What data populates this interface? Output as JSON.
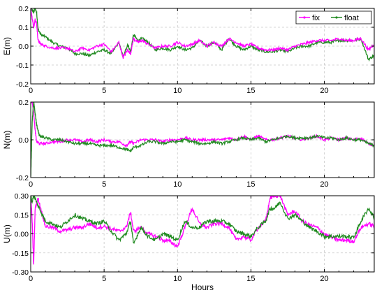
{
  "chart_data": [
    {
      "type": "line",
      "ylabel": "E(m)",
      "xlabel": "",
      "xlim": [
        0,
        23.4
      ],
      "ylim": [
        -0.2,
        0.2
      ],
      "xticks": [
        "0",
        "5",
        "10",
        "15",
        "20"
      ],
      "yticks": [
        "0.2",
        "0.1",
        "0.0",
        "-0.1",
        "-0.2"
      ],
      "grid": true,
      "legend": "top-right",
      "series": [
        {
          "name": "fix",
          "color": "#ff00ff",
          "x": [
            0,
            0.1,
            0.2,
            0.3,
            0.4,
            0.5,
            0.7,
            1,
            1.5,
            2,
            2.5,
            3,
            3.5,
            4,
            4.5,
            5,
            5.5,
            6,
            6.3,
            6.6,
            6.8,
            7,
            7.3,
            7.6,
            8,
            8.5,
            9,
            9.5,
            10,
            10.5,
            11,
            11.5,
            12,
            12.5,
            13,
            13.5,
            14,
            14.5,
            15,
            15.5,
            16,
            16.5,
            17,
            17.5,
            18,
            18.5,
            19,
            19.5,
            20,
            20.5,
            21,
            21.5,
            22,
            22.5,
            23,
            23.4
          ],
          "y": [
            0.2,
            0.15,
            0.1,
            0.14,
            0.12,
            0.03,
            0.01,
            0.0,
            -0.01,
            -0.01,
            -0.01,
            -0.03,
            -0.01,
            -0.02,
            0.0,
            0.01,
            -0.03,
            0.02,
            -0.06,
            -0.02,
            -0.04,
            0.04,
            0.02,
            0.03,
            0.01,
            -0.01,
            0.0,
            0.0,
            0.02,
            0.0,
            0.01,
            0.03,
            0.0,
            0.02,
            0.0,
            0.04,
            0.02,
            0.0,
            0.01,
            -0.01,
            -0.02,
            -0.02,
            -0.01,
            -0.02,
            0.0,
            0.01,
            0.02,
            0.03,
            0.03,
            0.03,
            0.04,
            0.03,
            0.03,
            0.04,
            -0.02,
            0.01
          ]
        },
        {
          "name": "float",
          "color": "#228b22",
          "x": [
            0,
            0.1,
            0.2,
            0.3,
            0.4,
            0.5,
            0.7,
            1,
            1.5,
            2,
            2.5,
            3,
            3.5,
            4,
            4.5,
            5,
            5.5,
            6,
            6.3,
            6.6,
            6.8,
            7,
            7.3,
            7.6,
            8,
            8.5,
            9,
            9.5,
            10,
            10.5,
            11,
            11.5,
            12,
            12.5,
            13,
            13.5,
            14,
            14.5,
            15,
            15.5,
            16,
            16.5,
            17,
            17.5,
            18,
            18.5,
            19,
            19.5,
            20,
            20.5,
            21,
            21.5,
            22,
            22.5,
            23,
            23.4
          ],
          "y": [
            0.2,
            0.19,
            0.18,
            0.2,
            0.18,
            0.09,
            0.06,
            0.05,
            0.02,
            0.0,
            -0.01,
            -0.04,
            -0.04,
            -0.05,
            -0.03,
            -0.02,
            -0.04,
            0.02,
            -0.06,
            0.01,
            -0.03,
            0.06,
            0.03,
            0.04,
            0.02,
            -0.02,
            -0.01,
            -0.02,
            0.0,
            -0.02,
            -0.01,
            0.03,
            0.0,
            0.02,
            -0.02,
            0.04,
            0.0,
            -0.02,
            0.0,
            -0.02,
            -0.03,
            -0.03,
            -0.02,
            -0.03,
            -0.01,
            0.0,
            0.0,
            0.02,
            0.02,
            0.02,
            0.03,
            0.03,
            0.03,
            0.04,
            -0.07,
            -0.05
          ]
        }
      ]
    },
    {
      "type": "line",
      "ylabel": "N(m)",
      "xlabel": "",
      "xlim": [
        0,
        23.4
      ],
      "ylim": [
        -0.2,
        0.2
      ],
      "xticks": [
        "0",
        "5",
        "10",
        "15",
        "20"
      ],
      "yticks": [
        "0.2",
        "0.0",
        "-0.2"
      ],
      "grid": true,
      "series": [
        {
          "name": "fix",
          "color": "#ff00ff",
          "x": [
            0,
            0.1,
            0.2,
            0.3,
            0.4,
            0.6,
            1,
            1.5,
            2,
            2.5,
            3,
            3.5,
            4,
            4.5,
            5,
            5.5,
            6,
            6.5,
            6.8,
            7,
            7.5,
            8,
            8.5,
            9,
            9.5,
            10,
            10.5,
            11,
            11.5,
            12,
            12.5,
            13,
            13.5,
            14,
            14.5,
            15,
            15.5,
            16,
            16.5,
            17,
            17.5,
            18,
            18.5,
            19,
            19.5,
            20,
            20.5,
            21,
            21.5,
            22,
            22.5,
            23,
            23.4
          ],
          "y": [
            0.2,
            0.2,
            0.15,
            0.05,
            -0.01,
            -0.02,
            -0.02,
            -0.01,
            -0.01,
            0.0,
            0.0,
            -0.01,
            0.0,
            -0.01,
            0.0,
            -0.01,
            -0.01,
            -0.03,
            -0.01,
            -0.02,
            0.0,
            0.0,
            0.0,
            -0.01,
            0.0,
            0.0,
            0.01,
            0.0,
            0.0,
            0.0,
            0.0,
            0.0,
            0.01,
            0.0,
            0.02,
            0.0,
            0.02,
            0.0,
            0.0,
            0.01,
            0.02,
            0.01,
            0.0,
            0.01,
            0.02,
            0.0,
            0.01,
            0.0,
            0.01,
            0.0,
            0.01,
            -0.02,
            -0.03
          ]
        },
        {
          "name": "float",
          "color": "#228b22",
          "x": [
            0,
            0.1,
            0.2,
            0.3,
            0.4,
            0.6,
            1,
            1.5,
            2,
            2.5,
            3,
            3.5,
            4,
            4.5,
            5,
            5.5,
            6,
            6.5,
            6.8,
            7,
            7.5,
            8,
            8.5,
            9,
            9.5,
            10,
            10.5,
            11,
            11.5,
            12,
            12.5,
            13,
            13.5,
            14,
            14.5,
            15,
            15.5,
            16,
            16.5,
            17,
            17.5,
            18,
            18.5,
            19,
            19.5,
            20,
            20.5,
            21,
            21.5,
            22,
            22.5,
            23,
            23.4
          ],
          "y": [
            -0.2,
            0.1,
            0.2,
            0.14,
            0.08,
            0.02,
            0.01,
            0.0,
            0.0,
            -0.01,
            -0.02,
            -0.02,
            -0.02,
            -0.03,
            -0.03,
            -0.03,
            -0.04,
            -0.05,
            -0.06,
            -0.04,
            -0.03,
            -0.01,
            -0.01,
            -0.02,
            -0.01,
            -0.01,
            0.0,
            -0.01,
            -0.02,
            -0.02,
            -0.01,
            -0.02,
            -0.01,
            0.0,
            0.01,
            0.0,
            0.01,
            -0.01,
            0.0,
            0.01,
            0.02,
            0.01,
            0.01,
            0.01,
            0.02,
            0.01,
            0.01,
            0.0,
            0.01,
            0.0,
            0.0,
            -0.02,
            -0.03
          ]
        }
      ]
    },
    {
      "type": "line",
      "ylabel": "U(m)",
      "xlabel": "Hours",
      "xlim": [
        0,
        23.4
      ],
      "ylim": [
        -0.3,
        0.3
      ],
      "xticks": [
        "0",
        "5",
        "10",
        "15",
        "20"
      ],
      "yticks": [
        "0.30",
        "0.15",
        "0.00",
        "-0.15",
        "-0.30"
      ],
      "grid": true,
      "series": [
        {
          "name": "fix",
          "color": "#ff00ff",
          "x": [
            0,
            0.1,
            0.2,
            0.3,
            0.5,
            0.8,
            1,
            1.5,
            2,
            2.5,
            3,
            3.5,
            4,
            4.5,
            5,
            5.5,
            6,
            6.5,
            6.8,
            7,
            7.5,
            8,
            8.5,
            9,
            9.5,
            10,
            10.5,
            11,
            11.5,
            12,
            12.5,
            13,
            13.5,
            14,
            14.5,
            15,
            15.5,
            16,
            16.3,
            16.6,
            17,
            17.5,
            18,
            18.5,
            19,
            19.5,
            20,
            20.5,
            21,
            21.5,
            22,
            22.5,
            23,
            23.4
          ],
          "y": [
            0.3,
            0.1,
            -0.25,
            0.2,
            0.28,
            0.15,
            0.06,
            0.05,
            0.02,
            0.03,
            0.05,
            0.05,
            0.08,
            0.05,
            0.06,
            0.04,
            0.02,
            0.05,
            0.17,
            0.02,
            0.05,
            0.0,
            -0.02,
            -0.05,
            -0.06,
            -0.1,
            0.05,
            0.2,
            0.08,
            0.05,
            0.08,
            0.08,
            0.05,
            -0.05,
            -0.02,
            -0.05,
            0.05,
            0.1,
            0.28,
            0.3,
            0.3,
            0.15,
            0.18,
            0.1,
            0.07,
            0.05,
            0.0,
            -0.03,
            -0.05,
            -0.05,
            -0.06,
            0.05,
            0.08,
            0.06
          ]
        },
        {
          "name": "float",
          "color": "#228b22",
          "x": [
            0,
            0.1,
            0.2,
            0.3,
            0.5,
            0.8,
            1,
            1.5,
            2,
            2.5,
            3,
            3.5,
            4,
            4.5,
            5,
            5.5,
            6,
            6.5,
            6.8,
            7,
            7.5,
            8,
            8.5,
            9,
            9.5,
            10,
            10.5,
            11,
            11.5,
            12,
            12.5,
            13,
            13.5,
            14,
            14.5,
            15,
            15.5,
            16,
            16.3,
            16.6,
            17,
            17.5,
            18,
            18.5,
            19,
            19.5,
            20,
            20.5,
            21,
            21.5,
            22,
            22.5,
            23,
            23.4
          ],
          "y": [
            0.3,
            0.25,
            0.3,
            0.28,
            0.22,
            0.15,
            0.1,
            0.08,
            0.05,
            0.1,
            0.15,
            0.12,
            0.1,
            0.08,
            0.1,
            0.02,
            -0.05,
            0.0,
            0.1,
            -0.08,
            0.05,
            -0.02,
            -0.05,
            0.0,
            -0.02,
            -0.05,
            0.1,
            0.05,
            0.05,
            0.1,
            0.1,
            0.1,
            0.08,
            0.02,
            0.0,
            -0.02,
            0.05,
            0.1,
            0.2,
            0.2,
            0.25,
            0.12,
            0.15,
            0.1,
            0.05,
            0.02,
            -0.02,
            -0.02,
            -0.02,
            -0.02,
            -0.03,
            0.1,
            0.2,
            0.13
          ]
        }
      ]
    }
  ]
}
